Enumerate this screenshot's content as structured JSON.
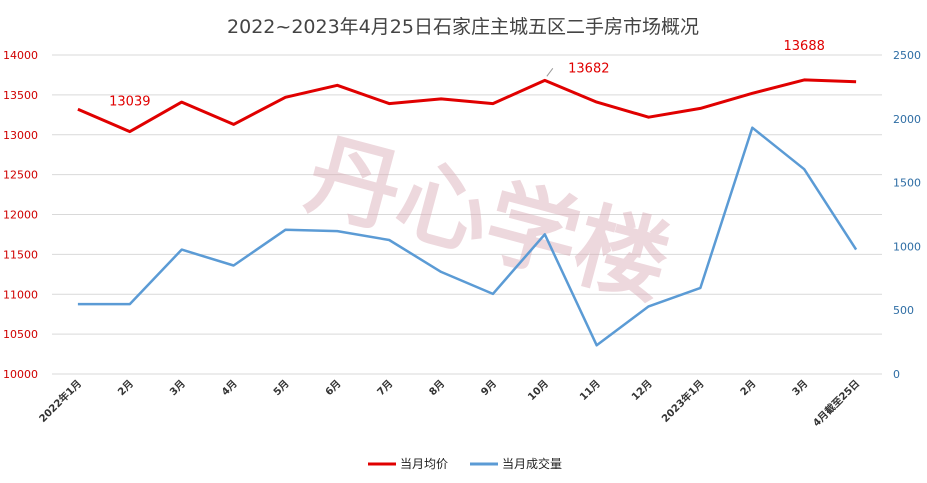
{
  "chart_data": {
    "type": "line",
    "title": "2022~2023年4月25日石家庄主城五区二手房市场概况",
    "categories": [
      "2022年1月",
      "2月",
      "3月",
      "4月",
      "5月",
      "6月",
      "7月",
      "8月",
      "9月",
      "10月",
      "11月",
      "12月",
      "2023年1月",
      "2月",
      "3月",
      "4月截至25日"
    ],
    "series": [
      {
        "name": "当月均价",
        "axis": "left",
        "color": "#e00000",
        "values": [
          13320,
          13039,
          13410,
          13130,
          13470,
          13620,
          13390,
          13450,
          13390,
          13682,
          13410,
          13220,
          13330,
          13520,
          13688,
          13665
        ]
      },
      {
        "name": "当月成交量",
        "axis": "right",
        "color": "#5b9bd5",
        "values": [
          548,
          548,
          975,
          850,
          1130,
          1120,
          1050,
          800,
          628,
          1095,
          225,
          530,
          675,
          1930,
          1605,
          975
        ]
      }
    ],
    "y_left": {
      "min": 10000,
      "max": 14000,
      "ticks": [
        "10000",
        "10500",
        "11000",
        "11500",
        "12000",
        "12500",
        "13000",
        "13500",
        "14000"
      ]
    },
    "y_right": {
      "min": 0,
      "max": 2500,
      "ticks": [
        "0",
        "500",
        "1000",
        "1500",
        "2000",
        "2500"
      ]
    },
    "data_labels": [
      {
        "series": 0,
        "index": 1,
        "text": "13039"
      },
      {
        "series": 0,
        "index": 9,
        "text": "13682"
      },
      {
        "series": 0,
        "index": 14,
        "text": "13688"
      }
    ],
    "grid": true,
    "legend_position": "bottom"
  },
  "watermark": "丹心学楼"
}
